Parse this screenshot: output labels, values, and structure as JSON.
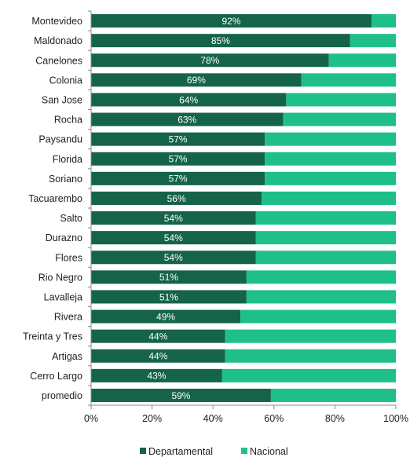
{
  "chart_data": {
    "type": "bar",
    "orientation": "horizontal",
    "stacked": "percent",
    "categories": [
      "Montevideo",
      "Maldonado",
      "Canelones",
      "Colonia",
      "San Jose",
      "Rocha",
      "Paysandu",
      "Florida",
      "Soriano",
      "Tacuarembo",
      "Salto",
      "Durazno",
      "Flores",
      "Rio Negro",
      "Lavalleja",
      "Rivera",
      "Treinta y Tres",
      "Artigas",
      "Cerro Largo",
      "promedio"
    ],
    "series": [
      {
        "name": "Departamental",
        "color": "#14634a",
        "values": [
          92,
          85,
          78,
          69,
          64,
          63,
          57,
          57,
          57,
          56,
          54,
          54,
          54,
          51,
          51,
          49,
          44,
          44,
          43,
          59
        ]
      },
      {
        "name": "Nacional",
        "color": "#1fbf8a",
        "values": [
          8,
          15,
          22,
          31,
          36,
          37,
          43,
          43,
          43,
          44,
          46,
          46,
          46,
          49,
          49,
          51,
          56,
          56,
          57,
          41
        ]
      }
    ],
    "data_labels": [
      "92%",
      "85%",
      "78%",
      "69%",
      "64%",
      "63%",
      "57%",
      "57%",
      "57%",
      "56%",
      "54%",
      "54%",
      "54%",
      "51%",
      "51%",
      "49%",
      "44%",
      "44%",
      "43%",
      "59%"
    ],
    "x_ticks": [
      "0%",
      "20%",
      "40%",
      "60%",
      "80%",
      "100%"
    ],
    "xlim": [
      0,
      100
    ],
    "grid": false,
    "legend_position": "bottom"
  }
}
